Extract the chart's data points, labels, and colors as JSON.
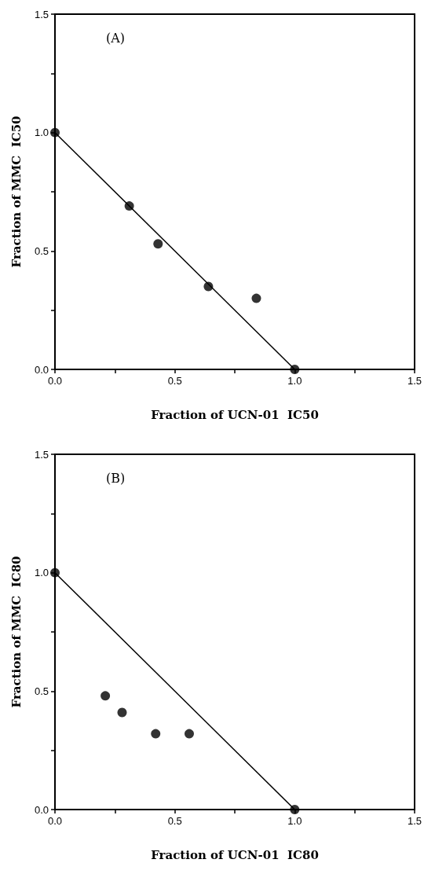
{
  "chart_data": [
    {
      "type": "scatter",
      "xlabel": "Fraction of UCN-01  IC50",
      "ylabel": "Fraction of MMC  IC50",
      "annotations": [
        "(A)"
      ],
      "xlim": [
        0,
        1.5
      ],
      "ylim": [
        0,
        1.5
      ],
      "xticks": [
        {
          "value": 0,
          "label": "0.0"
        },
        {
          "value": 0.25,
          "label": null
        },
        {
          "value": 0.5,
          "label": "0.5"
        },
        {
          "value": 0.75,
          "label": null
        },
        {
          "value": 1,
          "label": "1.0"
        },
        {
          "value": 1.25,
          "label": null
        },
        {
          "value": 1.5,
          "label": "1.5"
        }
      ],
      "yticks": [
        {
          "value": 0,
          "label": "0.0"
        },
        {
          "value": 0.25,
          "label": null
        },
        {
          "value": 0.5,
          "label": "0.5"
        },
        {
          "value": 0.75,
          "label": null
        },
        {
          "value": 1,
          "label": "1.0"
        },
        {
          "value": 1.25,
          "label": null
        },
        {
          "value": 1.5,
          "label": "1.5"
        }
      ],
      "marker": "circle",
      "grid": false,
      "series": [
        {
          "type": "line",
          "color": "#000000",
          "marker": "none",
          "x": [
            0,
            1
          ],
          "values": [
            1,
            0
          ]
        },
        {
          "color": "#000000",
          "x": [
            0,
            0.31,
            0.43,
            0.64,
            0.84,
            1
          ],
          "values": [
            1,
            0.69,
            0.53,
            0.35,
            0.3,
            0
          ]
        }
      ]
    },
    {
      "type": "scatter",
      "xlabel": "Fraction of UCN-01  IC80",
      "ylabel": "Fraction of MMC  IC80",
      "annotations": [
        "(B)"
      ],
      "xlim": [
        0,
        1.5
      ],
      "ylim": [
        0,
        1.5
      ],
      "xticks": [
        {
          "value": 0,
          "label": "0.0"
        },
        {
          "value": 0.25,
          "label": null
        },
        {
          "value": 0.5,
          "label": "0.5"
        },
        {
          "value": 0.75,
          "label": null
        },
        {
          "value": 1,
          "label": "1.0"
        },
        {
          "value": 1.25,
          "label": null
        },
        {
          "value": 1.5,
          "label": "1.5"
        }
      ],
      "yticks": [
        {
          "value": 0,
          "label": "0.0"
        },
        {
          "value": 0.25,
          "label": null
        },
        {
          "value": 0.5,
          "label": "0.5"
        },
        {
          "value": 0.75,
          "label": null
        },
        {
          "value": 1,
          "label": "1.0"
        },
        {
          "value": 1.25,
          "label": null
        },
        {
          "value": 1.5,
          "label": "1.5"
        }
      ],
      "marker": "circle",
      "grid": false,
      "series": [
        {
          "type": "line",
          "color": "#000000",
          "marker": "none",
          "x": [
            0,
            1
          ],
          "values": [
            1,
            0
          ]
        },
        {
          "color": "#000000",
          "x": [
            0,
            0.21,
            0.28,
            0.42,
            0.56,
            1
          ],
          "values": [
            1,
            0.48,
            0.41,
            0.32,
            0.32,
            0
          ]
        }
      ]
    }
  ]
}
